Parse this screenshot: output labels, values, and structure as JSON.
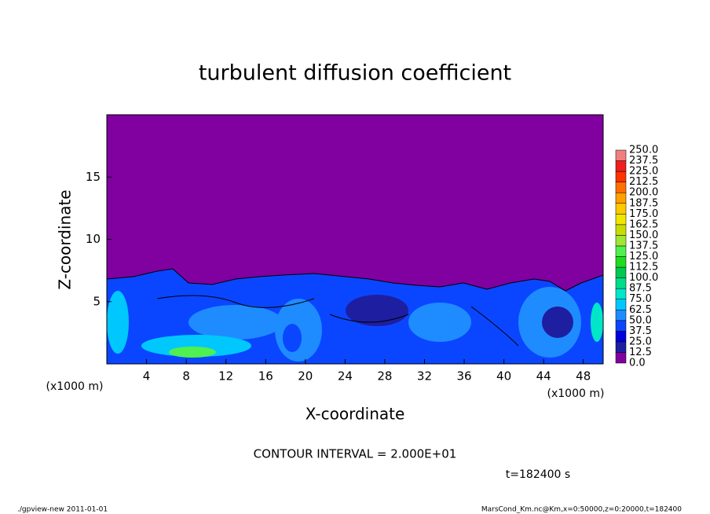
{
  "chart_data": {
    "type": "contour",
    "title": "turbulent diffusion coefficient",
    "x_label": "X-coordinate",
    "y_label": "Z-coordinate",
    "x_unit": "(x1000 m)",
    "y_unit": "(x1000 m)",
    "xlim": [
      0,
      50
    ],
    "xticks": [
      4,
      8,
      12,
      16,
      20,
      24,
      28,
      32,
      36,
      40,
      44,
      48
    ],
    "ylim": [
      0,
      20
    ],
    "yticks": [
      5,
      10,
      15
    ],
    "levels": [
      {
        "value": 0,
        "label": "0.0"
      },
      12.5,
      {
        "value": 25,
        "label": "25.0"
      },
      37.5,
      {
        "value": 50,
        "label": "50.0"
      },
      62.5,
      {
        "value": 75,
        "label": "75.0"
      },
      87.5,
      {
        "value": 100,
        "label": "100.0"
      },
      112.5,
      {
        "value": 125,
        "label": "125.0"
      },
      137.5,
      {
        "value": 150,
        "label": "150.0"
      },
      162.5,
      {
        "value": 175,
        "label": "175.0"
      },
      187.5,
      {
        "value": 200,
        "label": "200.0"
      },
      212.5,
      {
        "value": 225,
        "label": "225.0"
      },
      237.5,
      {
        "value": 250,
        "label": "250.0"
      }
    ],
    "colors": [
      "#8000a0",
      "#1e1ea0",
      "#0000dc",
      "#0a46ff",
      "#1e8cff",
      "#00c8ff",
      "#00e6c8",
      "#00dc8c",
      "#00c850",
      "#1edc1e",
      "#50f050",
      "#a0e632",
      "#c8dc00",
      "#f0e600",
      "#ffc800",
      "#ffa000",
      "#ff6e00",
      "#ff3200",
      "#f01e1e",
      "#f08080"
    ],
    "contour_interval": "CONTOUR INTERVAL = 2.000E+01",
    "time_label": "t=182400 s",
    "footer_left": "./gpview-new   2011-01-01",
    "footer_right": "MarsCond_Km.nc@Km,x=0:50000,z=0:20000,t=182400"
  }
}
